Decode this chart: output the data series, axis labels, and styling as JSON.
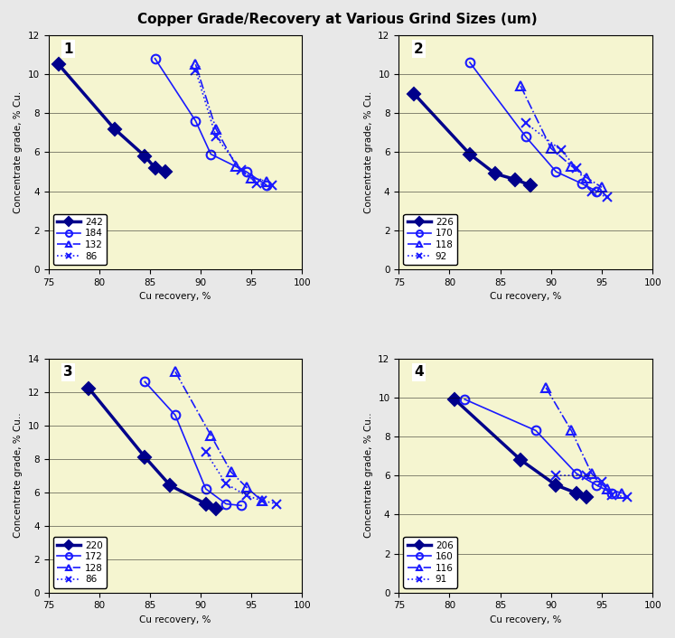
{
  "title": "Copper Grade/Recovery at Various Grind Sizes (um)",
  "subplots": [
    {
      "label": "1",
      "xlim": [
        75,
        100
      ],
      "ylim": [
        0,
        12
      ],
      "xticks": [
        75,
        80,
        85,
        90,
        95,
        100
      ],
      "yticks": [
        0,
        2,
        4,
        6,
        8,
        10,
        12
      ],
      "xlabel": "Cu recovery, %",
      "ylabel": "Concentrate grade, % Cu.",
      "series": [
        {
          "name": "242",
          "x": [
            76,
            81.5,
            84.5,
            85.5,
            86.5
          ],
          "y": [
            10.5,
            7.2,
            5.8,
            5.2,
            5.0
          ],
          "color": "#00008B",
          "linewidth": 2.5,
          "linestyle": "-",
          "marker": "D",
          "markersize": 7,
          "markerfacecolor": "#00008B"
        },
        {
          "name": "184",
          "x": [
            85.5,
            89.5,
            91.0,
            94.5,
            96.5
          ],
          "y": [
            10.8,
            7.6,
            5.9,
            5.0,
            4.3
          ],
          "color": "#1a1aff",
          "linewidth": 1.2,
          "linestyle": "-",
          "marker": "o",
          "markersize": 7,
          "markerfacecolor": "none",
          "markeredgecolor": "#1a1aff"
        },
        {
          "name": "132",
          "x": [
            89.5,
            91.5,
            93.5,
            95.0,
            96.5
          ],
          "y": [
            10.5,
            7.2,
            5.3,
            4.7,
            4.5
          ],
          "color": "#1a1aff",
          "linewidth": 1.2,
          "linestyle": "-.",
          "marker": "^",
          "markersize": 7,
          "markerfacecolor": "none",
          "markeredgecolor": "#1a1aff"
        },
        {
          "name": "86",
          "x": [
            89.5,
            91.5,
            94.0,
            95.5,
            97.0
          ],
          "y": [
            10.2,
            6.8,
            5.1,
            4.4,
            4.3
          ],
          "color": "#1a1aff",
          "linewidth": 1.2,
          "linestyle": ":",
          "marker": "x",
          "markersize": 7,
          "markerfacecolor": "none",
          "markeredgecolor": "#1a1aff"
        }
      ]
    },
    {
      "label": "2",
      "xlim": [
        75,
        100
      ],
      "ylim": [
        0,
        12
      ],
      "xticks": [
        75,
        80,
        85,
        90,
        95,
        100
      ],
      "yticks": [
        0,
        2,
        4,
        6,
        8,
        10,
        12
      ],
      "xlabel": "Cu recovery, %",
      "ylabel": "Concentrate grade, % Cu.",
      "series": [
        {
          "name": "226",
          "x": [
            76.5,
            82.0,
            84.5,
            86.5,
            88.0
          ],
          "y": [
            9.0,
            5.9,
            4.9,
            4.6,
            4.3
          ],
          "color": "#00008B",
          "linewidth": 2.5,
          "linestyle": "-",
          "marker": "D",
          "markersize": 7,
          "markerfacecolor": "#00008B"
        },
        {
          "name": "170",
          "x": [
            82.0,
            87.5,
            90.5,
            93.0,
            94.5
          ],
          "y": [
            10.6,
            6.8,
            5.0,
            4.4,
            4.0
          ],
          "color": "#1a1aff",
          "linewidth": 1.2,
          "linestyle": "-",
          "marker": "o",
          "markersize": 7,
          "markerfacecolor": "none",
          "markeredgecolor": "#1a1aff"
        },
        {
          "name": "118",
          "x": [
            87.0,
            90.0,
            92.0,
            93.5,
            95.0
          ],
          "y": [
            9.4,
            6.2,
            5.3,
            4.7,
            4.2
          ],
          "color": "#1a1aff",
          "linewidth": 1.2,
          "linestyle": "-.",
          "marker": "^",
          "markersize": 7,
          "markerfacecolor": "none",
          "markeredgecolor": "#1a1aff"
        },
        {
          "name": "92",
          "x": [
            87.5,
            91.0,
            92.5,
            94.0,
            95.5
          ],
          "y": [
            7.5,
            6.1,
            5.2,
            4.0,
            3.7
          ],
          "color": "#1a1aff",
          "linewidth": 1.2,
          "linestyle": ":",
          "marker": "x",
          "markersize": 7,
          "markerfacecolor": "none",
          "markeredgecolor": "#1a1aff"
        }
      ]
    },
    {
      "label": "3",
      "xlim": [
        75,
        100
      ],
      "ylim": [
        0,
        14
      ],
      "xticks": [
        75,
        80,
        85,
        90,
        95,
        100
      ],
      "yticks": [
        0,
        2,
        4,
        6,
        8,
        10,
        12,
        14
      ],
      "xlabel": "Cu recovery, %",
      "ylabel": "Concentrate grade, % Cu..",
      "series": [
        {
          "name": "220",
          "x": [
            79.0,
            84.5,
            87.0,
            90.5,
            91.5
          ],
          "y": [
            12.2,
            8.1,
            6.4,
            5.3,
            5.0
          ],
          "color": "#00008B",
          "linewidth": 2.5,
          "linestyle": "-",
          "marker": "D",
          "markersize": 7,
          "markerfacecolor": "#00008B"
        },
        {
          "name": "172",
          "x": [
            84.5,
            87.5,
            90.5,
            92.5,
            94.0
          ],
          "y": [
            12.6,
            10.6,
            6.2,
            5.3,
            5.2
          ],
          "color": "#1a1aff",
          "linewidth": 1.2,
          "linestyle": "-",
          "marker": "o",
          "markersize": 7,
          "markerfacecolor": "none",
          "markeredgecolor": "#1a1aff"
        },
        {
          "name": "128",
          "x": [
            87.5,
            91.0,
            93.0,
            94.5,
            96.0
          ],
          "y": [
            13.2,
            9.4,
            7.2,
            6.3,
            5.5
          ],
          "color": "#1a1aff",
          "linewidth": 1.2,
          "linestyle": "-.",
          "marker": "^",
          "markersize": 7,
          "markerfacecolor": "none",
          "markeredgecolor": "#1a1aff"
        },
        {
          "name": "86",
          "x": [
            90.5,
            92.5,
            94.5,
            96.0,
            97.5
          ],
          "y": [
            8.4,
            6.5,
            5.8,
            5.5,
            5.3
          ],
          "color": "#1a1aff",
          "linewidth": 1.2,
          "linestyle": ":",
          "marker": "x",
          "markersize": 7,
          "markerfacecolor": "none",
          "markeredgecolor": "#1a1aff"
        }
      ]
    },
    {
      "label": "4",
      "xlim": [
        75,
        100
      ],
      "ylim": [
        0,
        12
      ],
      "xticks": [
        75,
        80,
        85,
        90,
        95,
        100
      ],
      "yticks": [
        0,
        2,
        4,
        6,
        8,
        10,
        12
      ],
      "xlabel": "Cu recovery, %",
      "ylabel": "Concentrate grade, % Cu..",
      "series": [
        {
          "name": "206",
          "x": [
            80.5,
            87.0,
            90.5,
            92.5,
            93.5
          ],
          "y": [
            9.9,
            6.8,
            5.5,
            5.1,
            4.9
          ],
          "color": "#00008B",
          "linewidth": 2.5,
          "linestyle": "-",
          "marker": "D",
          "markersize": 7,
          "markerfacecolor": "#00008B"
        },
        {
          "name": "160",
          "x": [
            81.5,
            88.5,
            92.5,
            94.5,
            96.0
          ],
          "y": [
            9.9,
            8.3,
            6.1,
            5.5,
            5.1
          ],
          "color": "#1a1aff",
          "linewidth": 1.2,
          "linestyle": "-",
          "marker": "o",
          "markersize": 7,
          "markerfacecolor": "none",
          "markeredgecolor": "#1a1aff"
        },
        {
          "name": "116",
          "x": [
            89.5,
            92.0,
            94.0,
            95.5,
            97.0
          ],
          "y": [
            10.5,
            8.3,
            6.1,
            5.3,
            5.1
          ],
          "color": "#1a1aff",
          "linewidth": 1.2,
          "linestyle": "-.",
          "marker": "^",
          "markersize": 7,
          "markerfacecolor": "none",
          "markeredgecolor": "#1a1aff"
        },
        {
          "name": "91",
          "x": [
            90.5,
            93.5,
            95.0,
            96.0,
            97.5
          ],
          "y": [
            6.0,
            6.0,
            5.7,
            5.0,
            4.9
          ],
          "color": "#1a1aff",
          "linewidth": 1.2,
          "linestyle": ":",
          "marker": "x",
          "markersize": 7,
          "markerfacecolor": "none",
          "markeredgecolor": "#1a1aff"
        }
      ]
    }
  ],
  "fig_bg_color": "#e8e8e8",
  "plot_bg_color": "#f5f5d0",
  "legend_bg": "#ffffff"
}
